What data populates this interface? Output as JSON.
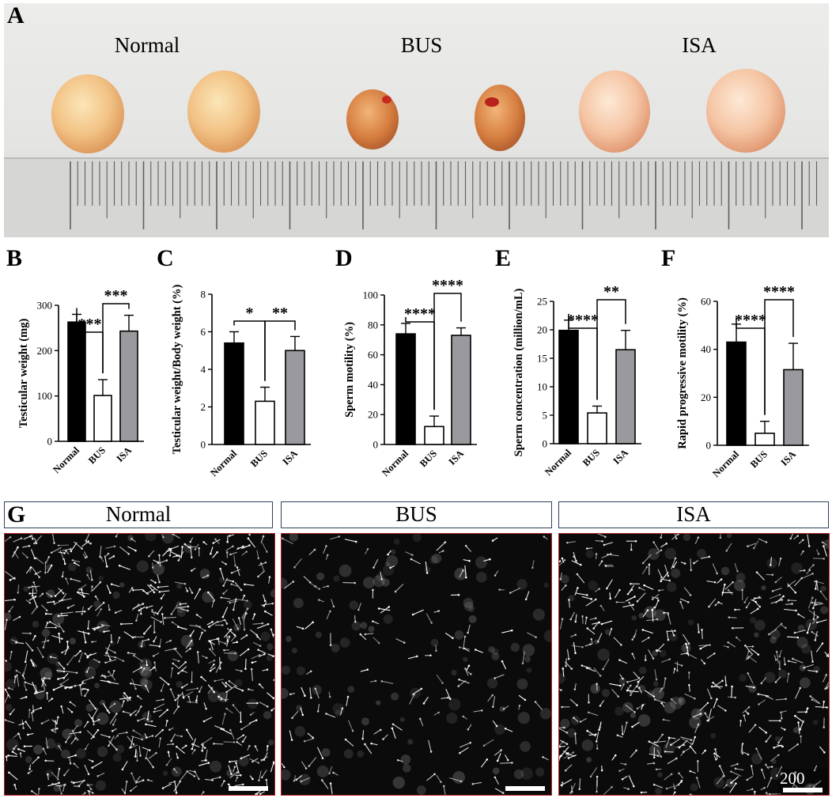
{
  "panel_a": {
    "letter": "A",
    "group_labels": [
      "Normal",
      "BUS",
      "ISA"
    ]
  },
  "panel_g": {
    "letter": "G",
    "headers": [
      "Normal",
      "BUS",
      "ISA"
    ],
    "scale_label": "200 μm"
  },
  "colors": {
    "normal": "#000000",
    "bus": "#ffffff",
    "isa": "#9a9a9e",
    "axis": "#000000",
    "header_border": "#2d3f5e",
    "micro_border": "#b8242b"
  },
  "chart_data": [
    {
      "id": "B",
      "letter": "B",
      "type": "bar",
      "categories": [
        "Normal",
        "BUS",
        "ISA"
      ],
      "values": [
        263,
        101,
        243
      ],
      "errors": [
        17,
        35,
        35
      ],
      "ylabel": "Testicular weight (mg)",
      "ylim": [
        0,
        300
      ],
      "yticks": [
        0,
        100,
        200,
        300
      ],
      "significance": [
        {
          "from": 0,
          "to": 1,
          "label": "***",
          "level": 1
        },
        {
          "from": 1,
          "to": 2,
          "label": "***",
          "level": 2
        }
      ]
    },
    {
      "id": "C",
      "letter": "C",
      "type": "bar",
      "categories": [
        "Normal",
        "BUS",
        "ISA"
      ],
      "values": [
        5.4,
        2.3,
        5.0
      ],
      "errors": [
        0.6,
        0.75,
        0.75
      ],
      "ylabel": "Testicular weight/Body weight (%)",
      "ylim": [
        0,
        8
      ],
      "yticks": [
        0,
        2,
        4,
        6,
        8
      ],
      "significance": [
        {
          "from": 0,
          "to": 1,
          "label": "*",
          "level": 1
        },
        {
          "from": 1,
          "to": 2,
          "label": "**",
          "level": 1
        }
      ]
    },
    {
      "id": "D",
      "letter": "D",
      "type": "bar",
      "categories": [
        "Normal",
        "BUS",
        "ISA"
      ],
      "values": [
        74,
        12,
        73
      ],
      "errors": [
        7,
        7,
        5
      ],
      "ylabel": "Sperm motility (%)",
      "ylim": [
        0,
        100
      ],
      "yticks": [
        0,
        20,
        40,
        60,
        80,
        100
      ],
      "significance": [
        {
          "from": 0,
          "to": 1,
          "label": "****",
          "level": 1
        },
        {
          "from": 1,
          "to": 2,
          "label": "****",
          "level": 2
        }
      ]
    },
    {
      "id": "E",
      "letter": "E",
      "type": "bar",
      "categories": [
        "Normal",
        "BUS",
        "ISA"
      ],
      "values": [
        19.9,
        5.4,
        16.5
      ],
      "errors": [
        1.8,
        1.2,
        3.4
      ],
      "ylabel": "Sperm concentration (million/mL)",
      "ylim": [
        0,
        25
      ],
      "yticks": [
        0,
        5,
        10,
        15,
        20,
        25
      ],
      "significance": [
        {
          "from": 0,
          "to": 1,
          "label": "****",
          "level": 1
        },
        {
          "from": 1,
          "to": 2,
          "label": "**",
          "level": 2
        }
      ]
    },
    {
      "id": "F",
      "letter": "F",
      "type": "bar",
      "categories": [
        "Normal",
        "BUS",
        "ISA"
      ],
      "values": [
        43,
        5,
        31.5
      ],
      "errors": [
        7.5,
        5,
        11
      ],
      "ylabel": "Rapid progressive motility (%)",
      "ylim": [
        0,
        60
      ],
      "yticks": [
        0,
        20,
        40,
        60
      ],
      "significance": [
        {
          "from": 0,
          "to": 1,
          "label": "****",
          "level": 1
        },
        {
          "from": 1,
          "to": 2,
          "label": "****",
          "level": 2
        }
      ]
    }
  ]
}
